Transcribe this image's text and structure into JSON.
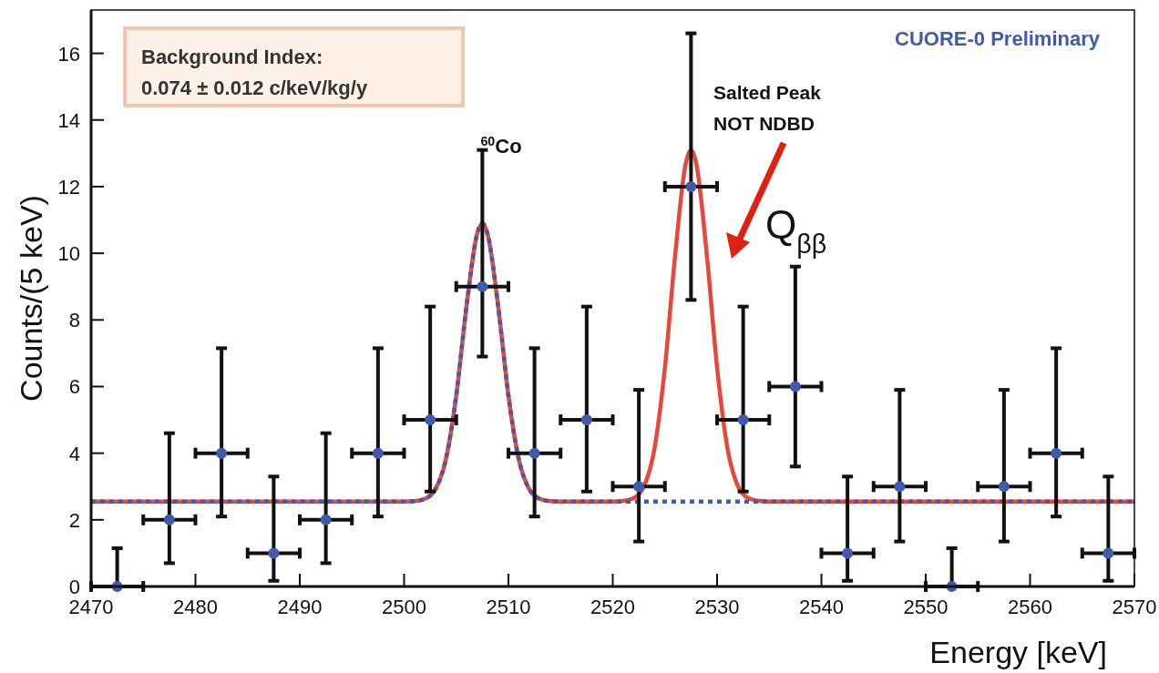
{
  "chart_data": {
    "type": "scatter",
    "xlabel": "Energy [keV]",
    "ylabel": "Counts/(5 keV)",
    "xlim": [
      2470,
      2570
    ],
    "xticks": [
      2470,
      2480,
      2490,
      2500,
      2510,
      2520,
      2530,
      2540,
      2550,
      2560,
      2570
    ],
    "ylim": [
      0,
      17.3
    ],
    "yticks": [
      0,
      2,
      4,
      6,
      8,
      10,
      12,
      14,
      16
    ],
    "grid": false,
    "annotations": [
      "Background Index:",
      "0.074 ± 0.012 c/keV/kg/y",
      "CUORE-0 Preliminary",
      "$^{60}$Co",
      "Salted Peak",
      "NOT NDBD",
      "Q$_{ββ}$"
    ],
    "series": [
      {
        "type": "line",
        "color": "#e8483a",
        "line_style": "solid",
        "x": [
          2470,
          2500,
          2501,
          2502,
          2503,
          2504,
          2505,
          2506,
          2507,
          2507.5,
          2508,
          2509,
          2510,
          2511,
          2512,
          2513,
          2514,
          2515,
          2520,
          2521,
          2522,
          2523,
          2524,
          2525,
          2526,
          2527,
          2527.5,
          2528,
          2529,
          2530,
          2531,
          2532,
          2533,
          2534,
          2535,
          2570
        ],
        "values": [
          2.55,
          2.55,
          2.56,
          2.63,
          2.92,
          3.81,
          5.73,
          8.45,
          10.58,
          10.9,
          10.58,
          8.45,
          5.73,
          3.81,
          2.92,
          2.63,
          2.56,
          2.55,
          2.55,
          2.57,
          2.65,
          3.01,
          4.14,
          6.57,
          10.01,
          12.7,
          13.1,
          12.7,
          10.01,
          6.57,
          4.14,
          3.01,
          2.65,
          2.57,
          2.55,
          2.55
        ]
      },
      {
        "type": "line",
        "color": "#3f5bad",
        "line_style": "dotted",
        "x": [
          2470,
          2500,
          2501,
          2502,
          2503,
          2504,
          2505,
          2506,
          2507,
          2507.5,
          2508,
          2509,
          2510,
          2511,
          2512,
          2513,
          2514,
          2515,
          2570
        ],
        "values": [
          2.55,
          2.55,
          2.56,
          2.63,
          2.92,
          3.81,
          5.73,
          8.45,
          10.58,
          10.9,
          10.58,
          8.45,
          5.73,
          3.81,
          2.92,
          2.63,
          2.56,
          2.55,
          2.55
        ]
      },
      {
        "color": "#3f5bad",
        "marker": "circle",
        "x": [
          2472.5,
          2477.5,
          2482.5,
          2487.5,
          2492.5,
          2497.5,
          2502.5,
          2507.5,
          2512.5,
          2517.5,
          2522.5,
          2527.5,
          2532.5,
          2537.5,
          2542.5,
          2547.5,
          2552.5,
          2557.5,
          2562.5,
          2567.5
        ],
        "values": [
          0,
          2,
          4,
          1,
          2,
          4,
          5,
          9,
          4,
          5,
          3,
          12,
          5,
          6,
          1,
          3,
          0,
          3,
          4,
          1
        ],
        "errors": [
          [
            0,
            1.15
          ],
          [
            0.7,
            4.6
          ],
          [
            2.1,
            7.15
          ],
          [
            0.17,
            3.3
          ],
          [
            0.7,
            4.6
          ],
          [
            2.1,
            7.15
          ],
          [
            2.85,
            8.4
          ],
          [
            6.9,
            13.1
          ],
          [
            2.1,
            7.15
          ],
          [
            2.85,
            8.4
          ],
          [
            1.35,
            5.9
          ],
          [
            8.6,
            16.6
          ],
          [
            2.85,
            8.4
          ],
          [
            3.6,
            9.6
          ],
          [
            0.17,
            3.3
          ],
          [
            1.35,
            5.9
          ],
          [
            0,
            1.15
          ],
          [
            1.35,
            5.9
          ],
          [
            2.1,
            7.15
          ],
          [
            0.17,
            3.3
          ]
        ],
        "xerrors": [
          2.5,
          2.5,
          2.5,
          2.5,
          2.5,
          2.5,
          2.5,
          2.5,
          2.5,
          2.5,
          2.5,
          2.5,
          2.5,
          2.5,
          2.5,
          2.5,
          2.5,
          2.5,
          2.5,
          2.5
        ]
      }
    ]
  }
}
